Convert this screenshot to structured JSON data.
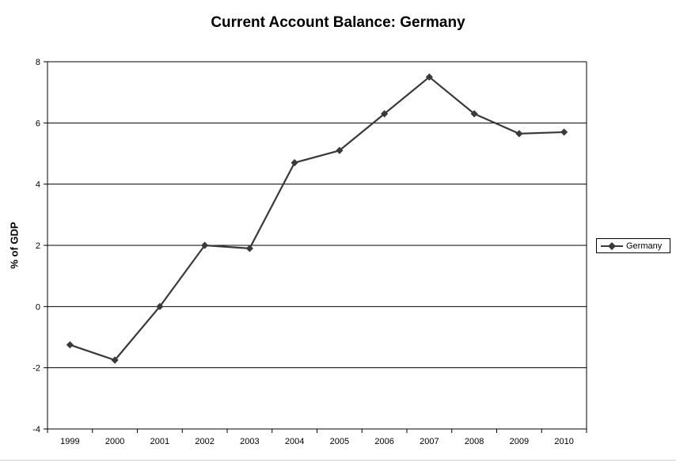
{
  "chart_data": {
    "type": "line",
    "title": "Current Account Balance: Germany",
    "xlabel": "",
    "ylabel": "% of GDP",
    "categories": [
      "1999",
      "2000",
      "2001",
      "2002",
      "2003",
      "2004",
      "2005",
      "2006",
      "2007",
      "2008",
      "2009",
      "2010"
    ],
    "series": [
      {
        "name": "Germany",
        "values": [
          -1.25,
          -1.75,
          0.0,
          2.0,
          1.9,
          4.7,
          5.1,
          6.3,
          7.5,
          6.3,
          5.65,
          5.7
        ],
        "color": "#3a3a3a",
        "marker": "diamond"
      }
    ],
    "ylim": [
      -4,
      8
    ],
    "yticks": [
      "-4",
      "-2",
      "0",
      "2",
      "4",
      "6",
      "8"
    ],
    "grid": true,
    "legend_position": "right"
  }
}
